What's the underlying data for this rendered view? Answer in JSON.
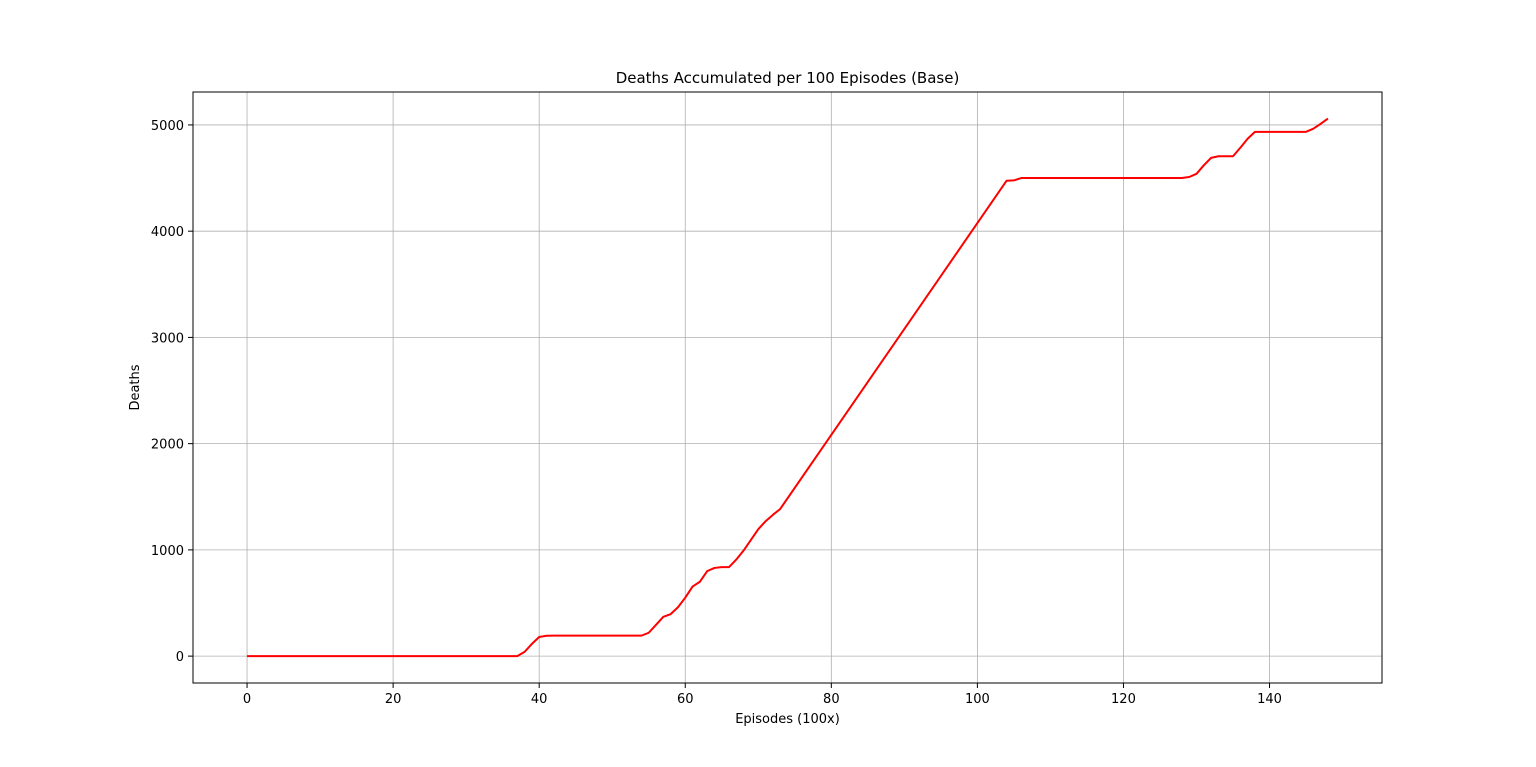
{
  "chart_data": {
    "type": "line",
    "title": "Deaths Accumulated per 100 Episodes (Base)",
    "xlabel": "Episodes (100x)",
    "ylabel": "Deaths",
    "xlim": [
      -7.4,
      155.4
    ],
    "ylim": [
      -253,
      5310
    ],
    "x_ticks": [
      0,
      20,
      40,
      60,
      80,
      100,
      120,
      140
    ],
    "y_ticks": [
      0,
      1000,
      2000,
      3000,
      4000,
      5000
    ],
    "grid": true,
    "legend": "none",
    "series": [
      {
        "color": "#ff0000",
        "x": [
          0,
          37,
          38,
          39,
          40,
          41,
          42,
          54,
          55,
          56,
          57,
          58,
          59,
          60,
          61,
          62,
          63,
          64,
          65,
          66,
          67,
          68,
          69,
          70,
          71,
          72,
          73,
          104,
          105,
          106,
          128,
          129,
          130,
          131,
          132,
          133,
          135,
          136,
          137,
          138,
          145,
          146,
          147,
          148
        ],
        "y": [
          0,
          0,
          40,
          115,
          180,
          192,
          193,
          193,
          220,
          295,
          370,
          395,
          460,
          550,
          655,
          700,
          800,
          830,
          838,
          838,
          910,
          995,
          1095,
          1195,
          1270,
          1330,
          1385,
          4475,
          4478,
          4500,
          4500,
          4510,
          4540,
          4620,
          4690,
          4705,
          4705,
          4785,
          4870,
          4935,
          4935,
          4965,
          5010,
          5060
        ]
      }
    ]
  }
}
